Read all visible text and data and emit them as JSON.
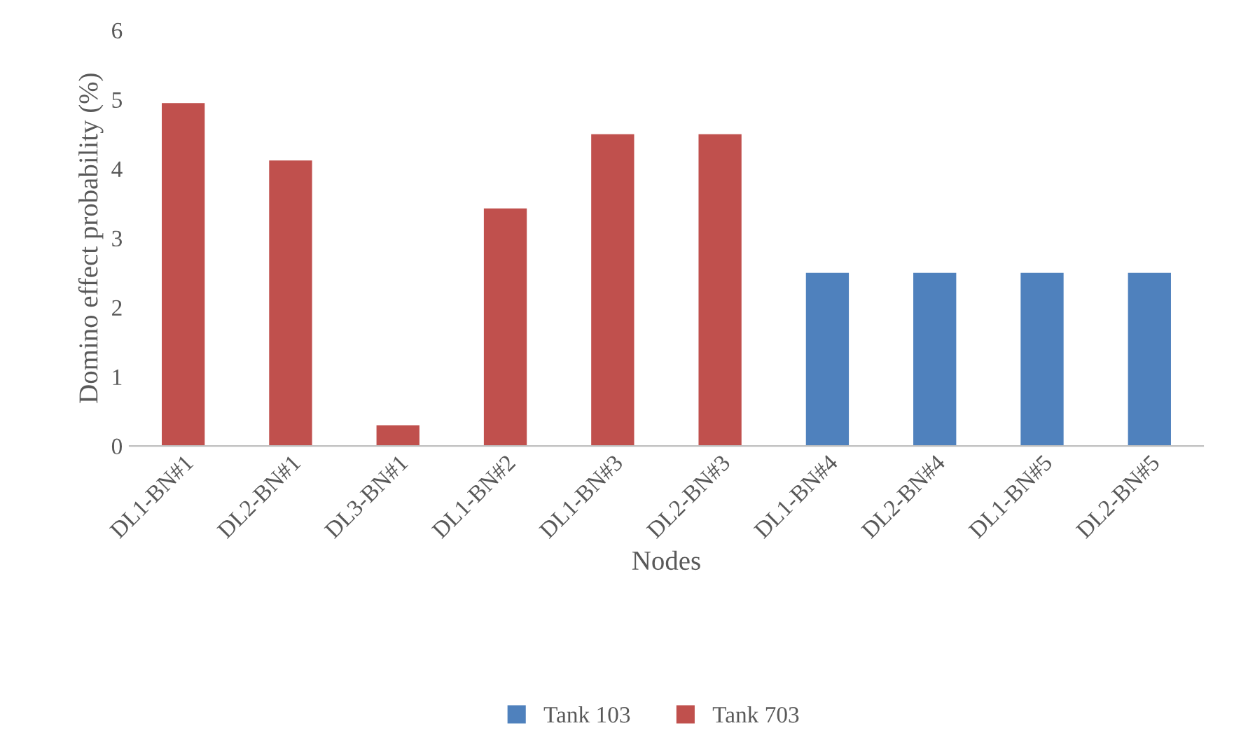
{
  "chart_data": {
    "type": "bar",
    "xlabel": "Nodes",
    "ylabel": "Domino effect probability (%)",
    "categories": [
      "DL1-BN#1",
      "DL2-BN#1",
      "DL3-BN#1",
      "DL1-BN#2",
      "DL1-BN#3",
      "DL2-BN#3",
      "DL1-BN#4",
      "DL2-BN#4",
      "DL1-BN#5",
      "DL2-BN#5"
    ],
    "series": [
      {
        "name": "Tank 103",
        "color": "#4f81bd",
        "values": [
          null,
          null,
          null,
          null,
          null,
          null,
          2.5,
          2.5,
          2.5,
          2.5
        ]
      },
      {
        "name": "Tank 703",
        "color": "#c0504d",
        "values": [
          4.95,
          4.12,
          0.3,
          3.43,
          4.5,
          4.5,
          null,
          null,
          null,
          null
        ]
      }
    ],
    "ylim": [
      0,
      6
    ],
    "yticks": [
      0,
      1,
      2,
      3,
      4,
      5,
      6
    ],
    "grid": false,
    "legend": "bottom"
  }
}
